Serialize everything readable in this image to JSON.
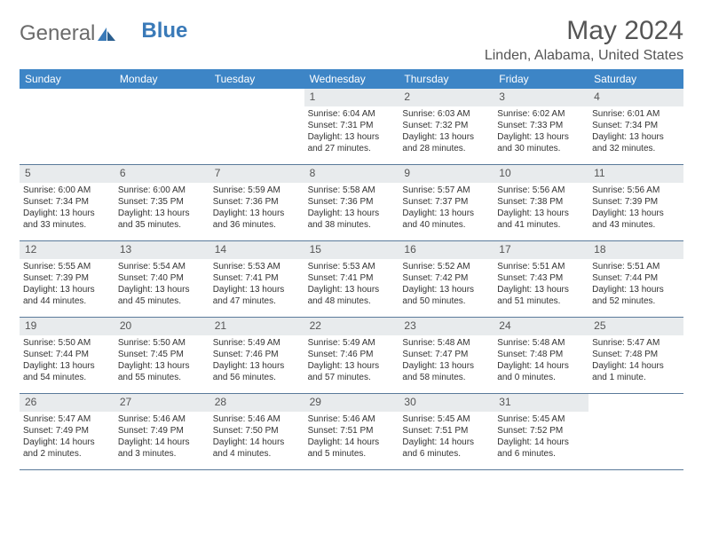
{
  "brand": {
    "general": "General",
    "blue": "Blue"
  },
  "title": "May 2024",
  "location": "Linden, Alabama, United States",
  "weekdays": [
    "Sunday",
    "Monday",
    "Tuesday",
    "Wednesday",
    "Thursday",
    "Friday",
    "Saturday"
  ],
  "colors": {
    "header_bg": "#3d85c6",
    "header_text": "#ffffff",
    "daynum_bg": "#e8ebed",
    "week_border": "#5a7a9a",
    "text": "#333333",
    "logo_blue": "#3a7ab8"
  },
  "typography": {
    "title_fontsize": 30,
    "location_fontsize": 16,
    "weekday_fontsize": 12,
    "daynum_fontsize": 12,
    "body_fontsize": 10
  },
  "first_weekday_index": 3,
  "num_days": 31,
  "days": [
    {
      "n": 1,
      "sunrise": "6:04 AM",
      "sunset": "7:31 PM",
      "daylight": "13 hours and 27 minutes."
    },
    {
      "n": 2,
      "sunrise": "6:03 AM",
      "sunset": "7:32 PM",
      "daylight": "13 hours and 28 minutes."
    },
    {
      "n": 3,
      "sunrise": "6:02 AM",
      "sunset": "7:33 PM",
      "daylight": "13 hours and 30 minutes."
    },
    {
      "n": 4,
      "sunrise": "6:01 AM",
      "sunset": "7:34 PM",
      "daylight": "13 hours and 32 minutes."
    },
    {
      "n": 5,
      "sunrise": "6:00 AM",
      "sunset": "7:34 PM",
      "daylight": "13 hours and 33 minutes."
    },
    {
      "n": 6,
      "sunrise": "6:00 AM",
      "sunset": "7:35 PM",
      "daylight": "13 hours and 35 minutes."
    },
    {
      "n": 7,
      "sunrise": "5:59 AM",
      "sunset": "7:36 PM",
      "daylight": "13 hours and 36 minutes."
    },
    {
      "n": 8,
      "sunrise": "5:58 AM",
      "sunset": "7:36 PM",
      "daylight": "13 hours and 38 minutes."
    },
    {
      "n": 9,
      "sunrise": "5:57 AM",
      "sunset": "7:37 PM",
      "daylight": "13 hours and 40 minutes."
    },
    {
      "n": 10,
      "sunrise": "5:56 AM",
      "sunset": "7:38 PM",
      "daylight": "13 hours and 41 minutes."
    },
    {
      "n": 11,
      "sunrise": "5:56 AM",
      "sunset": "7:39 PM",
      "daylight": "13 hours and 43 minutes."
    },
    {
      "n": 12,
      "sunrise": "5:55 AM",
      "sunset": "7:39 PM",
      "daylight": "13 hours and 44 minutes."
    },
    {
      "n": 13,
      "sunrise": "5:54 AM",
      "sunset": "7:40 PM",
      "daylight": "13 hours and 45 minutes."
    },
    {
      "n": 14,
      "sunrise": "5:53 AM",
      "sunset": "7:41 PM",
      "daylight": "13 hours and 47 minutes."
    },
    {
      "n": 15,
      "sunrise": "5:53 AM",
      "sunset": "7:41 PM",
      "daylight": "13 hours and 48 minutes."
    },
    {
      "n": 16,
      "sunrise": "5:52 AM",
      "sunset": "7:42 PM",
      "daylight": "13 hours and 50 minutes."
    },
    {
      "n": 17,
      "sunrise": "5:51 AM",
      "sunset": "7:43 PM",
      "daylight": "13 hours and 51 minutes."
    },
    {
      "n": 18,
      "sunrise": "5:51 AM",
      "sunset": "7:44 PM",
      "daylight": "13 hours and 52 minutes."
    },
    {
      "n": 19,
      "sunrise": "5:50 AM",
      "sunset": "7:44 PM",
      "daylight": "13 hours and 54 minutes."
    },
    {
      "n": 20,
      "sunrise": "5:50 AM",
      "sunset": "7:45 PM",
      "daylight": "13 hours and 55 minutes."
    },
    {
      "n": 21,
      "sunrise": "5:49 AM",
      "sunset": "7:46 PM",
      "daylight": "13 hours and 56 minutes."
    },
    {
      "n": 22,
      "sunrise": "5:49 AM",
      "sunset": "7:46 PM",
      "daylight": "13 hours and 57 minutes."
    },
    {
      "n": 23,
      "sunrise": "5:48 AM",
      "sunset": "7:47 PM",
      "daylight": "13 hours and 58 minutes."
    },
    {
      "n": 24,
      "sunrise": "5:48 AM",
      "sunset": "7:48 PM",
      "daylight": "14 hours and 0 minutes."
    },
    {
      "n": 25,
      "sunrise": "5:47 AM",
      "sunset": "7:48 PM",
      "daylight": "14 hours and 1 minute."
    },
    {
      "n": 26,
      "sunrise": "5:47 AM",
      "sunset": "7:49 PM",
      "daylight": "14 hours and 2 minutes."
    },
    {
      "n": 27,
      "sunrise": "5:46 AM",
      "sunset": "7:49 PM",
      "daylight": "14 hours and 3 minutes."
    },
    {
      "n": 28,
      "sunrise": "5:46 AM",
      "sunset": "7:50 PM",
      "daylight": "14 hours and 4 minutes."
    },
    {
      "n": 29,
      "sunrise": "5:46 AM",
      "sunset": "7:51 PM",
      "daylight": "14 hours and 5 minutes."
    },
    {
      "n": 30,
      "sunrise": "5:45 AM",
      "sunset": "7:51 PM",
      "daylight": "14 hours and 6 minutes."
    },
    {
      "n": 31,
      "sunrise": "5:45 AM",
      "sunset": "7:52 PM",
      "daylight": "14 hours and 6 minutes."
    }
  ],
  "labels": {
    "sunrise": "Sunrise:",
    "sunset": "Sunset:",
    "daylight": "Daylight:"
  }
}
